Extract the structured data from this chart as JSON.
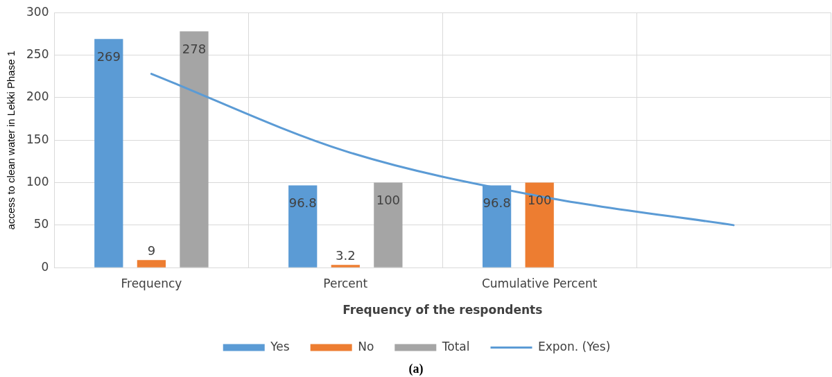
{
  "chart_data": {
    "type": "bar",
    "xlabel": "Frequency of the respondents",
    "ylabel": "access to clean water in Lekki Phase 1",
    "categories": [
      "Frequency",
      "Percent",
      "Cumulative Percent",
      null
    ],
    "series": [
      {
        "name": "Yes",
        "color": "#5b9bd5",
        "values": [
          269,
          96.8,
          96.8,
          null
        ],
        "value_labels": [
          "269",
          "96.8",
          "96.8",
          null
        ]
      },
      {
        "name": "No",
        "color": "#ed7d31",
        "values": [
          9,
          3.2,
          100,
          null
        ],
        "value_labels": [
          "9",
          "3.2",
          "100",
          null
        ]
      },
      {
        "name": "Total",
        "color": "#a5a5a5",
        "values": [
          278,
          100,
          null,
          null
        ],
        "value_labels": [
          "278",
          "100",
          null,
          null
        ]
      },
      {
        "type": "line",
        "name": "Expon. (Yes)",
        "color": "#5b9bd5",
        "values": [
          228,
          137,
          84,
          50
        ],
        "marker": "none"
      }
    ],
    "ylim": [
      0,
      300
    ],
    "yticks": [
      0,
      50,
      100,
      150,
      200,
      250,
      300
    ],
    "grid": true,
    "legend": "bottom",
    "annotations": [
      "(a)"
    ]
  }
}
